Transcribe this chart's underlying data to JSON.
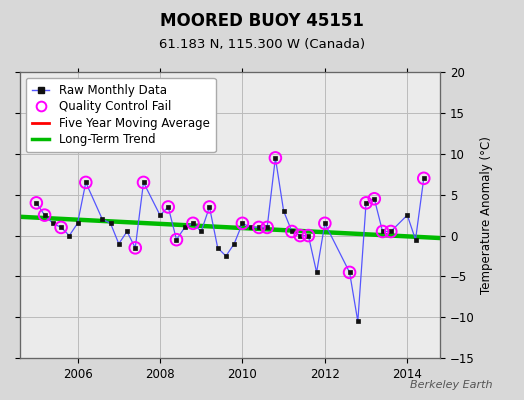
{
  "title": "MOORED BUOY 45151",
  "subtitle": "61.183 N, 115.300 W (Canada)",
  "ylabel": "Temperature Anomaly (°C)",
  "watermark": "Berkeley Earth",
  "bg_color": "#d8d8d8",
  "plot_bg_color": "#ebebeb",
  "ylim": [
    -15,
    20
  ],
  "yticks": [
    -15,
    -10,
    -5,
    0,
    5,
    10,
    15,
    20
  ],
  "xlim": [
    2004.6,
    2014.8
  ],
  "xticks": [
    2006,
    2008,
    2010,
    2012,
    2014
  ],
  "raw_x": [
    2005.0,
    2005.2,
    2005.4,
    2005.6,
    2005.8,
    2006.0,
    2006.2,
    2006.6,
    2006.8,
    2007.0,
    2007.2,
    2007.4,
    2007.6,
    2008.0,
    2008.2,
    2008.4,
    2008.6,
    2008.8,
    2009.0,
    2009.2,
    2009.4,
    2009.6,
    2009.8,
    2010.0,
    2010.2,
    2010.4,
    2010.6,
    2010.8,
    2011.0,
    2011.2,
    2011.4,
    2011.6,
    2011.8,
    2012.0,
    2012.6,
    2012.8,
    2013.0,
    2013.2,
    2013.4,
    2013.6,
    2014.0,
    2014.2,
    2014.4
  ],
  "raw_y": [
    4.0,
    2.5,
    1.5,
    1.0,
    0.0,
    1.5,
    6.5,
    2.0,
    1.5,
    -1.0,
    0.5,
    -1.5,
    6.5,
    2.5,
    3.5,
    -0.5,
    1.0,
    1.5,
    0.5,
    3.5,
    -1.5,
    -2.5,
    -1.0,
    1.5,
    1.0,
    1.0,
    1.0,
    9.5,
    3.0,
    0.5,
    -0.0,
    0.0,
    -4.5,
    1.5,
    -4.5,
    -10.5,
    4.0,
    4.5,
    0.5,
    0.5,
    2.5,
    -0.5,
    7.0
  ],
  "qc_fail_x": [
    2005.0,
    2005.2,
    2005.6,
    2006.2,
    2007.4,
    2007.6,
    2008.2,
    2008.4,
    2008.8,
    2009.2,
    2010.0,
    2010.4,
    2010.6,
    2010.8,
    2011.2,
    2011.4,
    2011.6,
    2012.0,
    2012.6,
    2013.0,
    2013.2,
    2013.4,
    2013.6,
    2014.4
  ],
  "qc_fail_y": [
    4.0,
    2.5,
    1.0,
    6.5,
    -1.5,
    6.5,
    3.5,
    -0.5,
    1.5,
    3.5,
    1.5,
    1.0,
    1.0,
    9.5,
    0.5,
    0.0,
    0.0,
    1.5,
    -4.5,
    4.0,
    4.5,
    0.5,
    0.5,
    7.0
  ],
  "trend_x": [
    2004.6,
    2014.8
  ],
  "trend_y": [
    2.3,
    -0.3
  ],
  "raw_color": "#5555ff",
  "raw_marker_color": "#111111",
  "qc_color": "#ff00ff",
  "trend_color": "#00bb00",
  "mavg_color": "#ff0000",
  "legend_fontsize": 8.5,
  "title_fontsize": 12,
  "subtitle_fontsize": 9.5,
  "tick_fontsize": 8.5,
  "grid_color": "#bbbbbb"
}
